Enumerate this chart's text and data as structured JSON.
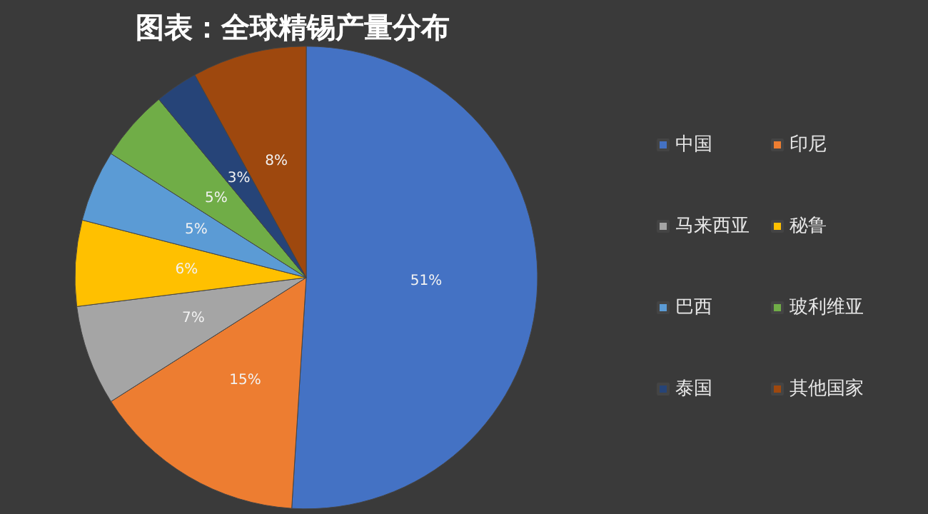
{
  "chart_data": {
    "type": "pie",
    "title": "图表：全球精锡产量分布",
    "categories": [
      "中国",
      "印尼",
      "马来西亚",
      "秘鲁",
      "巴西",
      "玻利维亚",
      "泰国",
      "其他国家"
    ],
    "values": [
      51,
      15,
      7,
      6,
      5,
      5,
      3,
      8
    ],
    "value_labels": [
      "51%",
      "15%",
      "7%",
      "6%",
      "5%",
      "5%",
      "3%",
      "8%"
    ],
    "colors": [
      "#4472c4",
      "#ed7d31",
      "#a5a5a5",
      "#ffc000",
      "#5b9bd5",
      "#70ad47",
      "#264478",
      "#9e480e"
    ],
    "legend": "right"
  }
}
